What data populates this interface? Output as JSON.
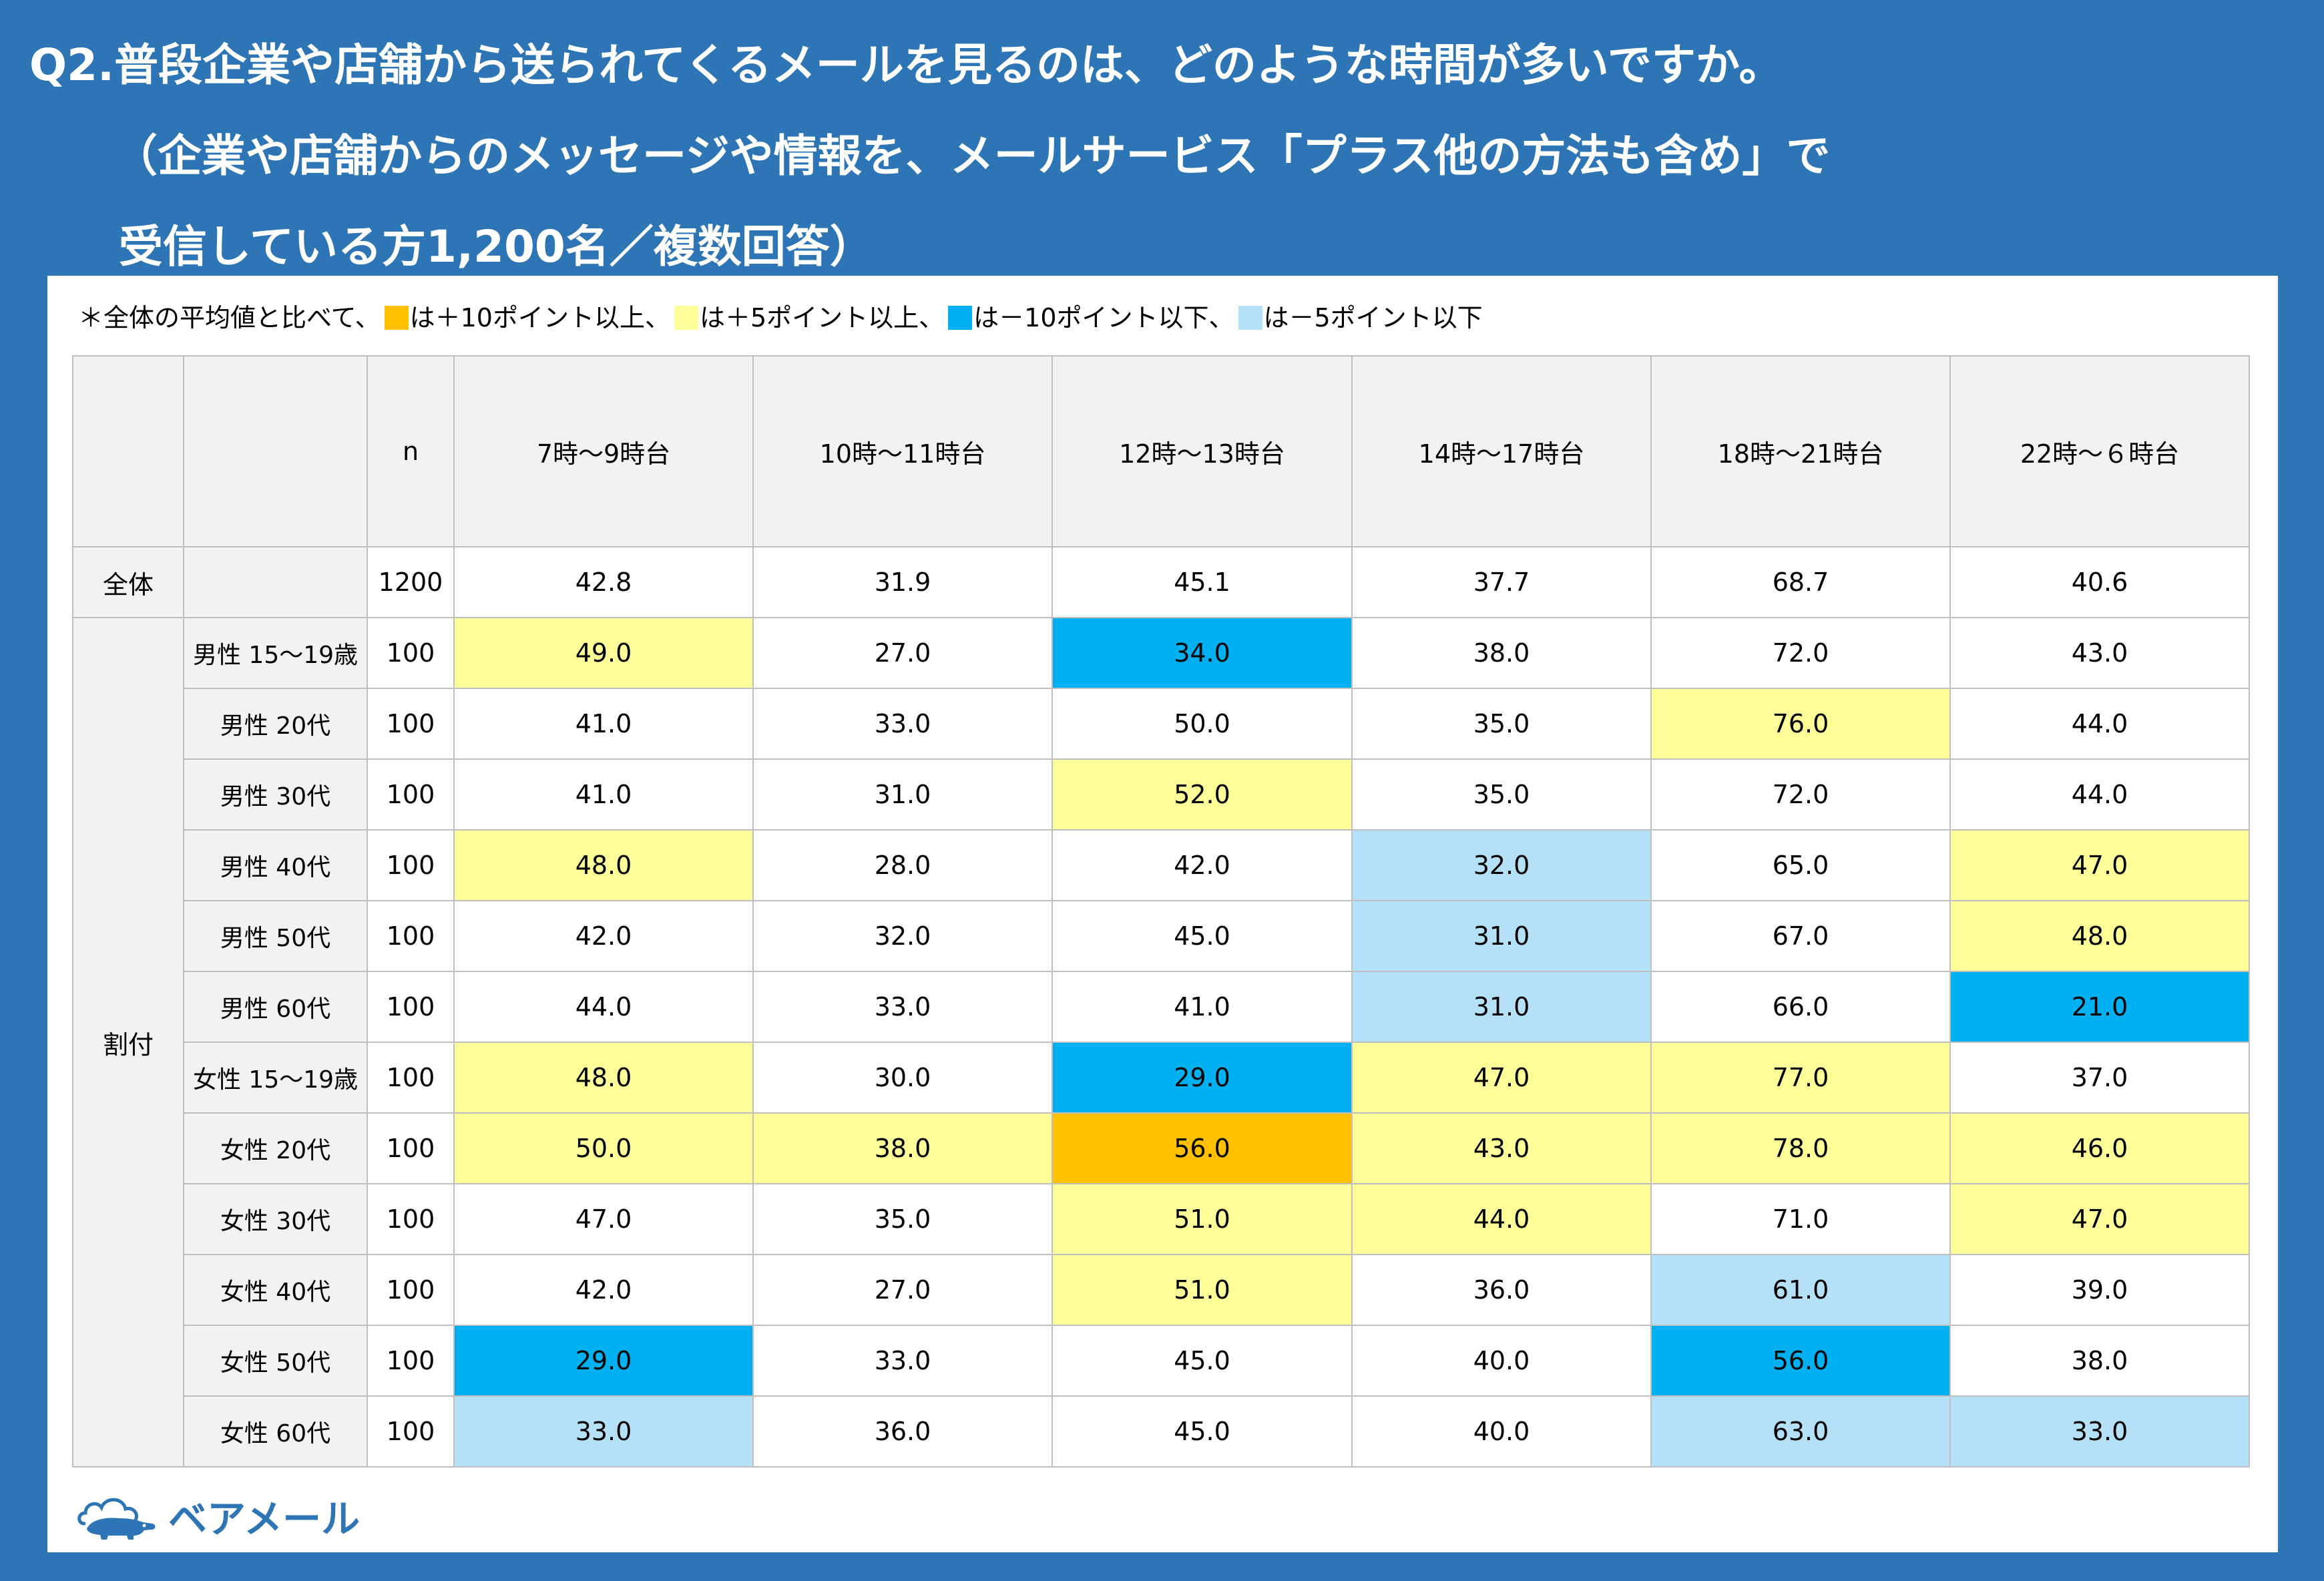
{
  "title": {
    "line1": "Q2.普段企業や店舗から送られてくるメールを見るのは、どのような時間が多いですか。",
    "line2": "（企業や店舗からのメッセージや情報を、メールサービス「プラス他の方法も含め」で",
    "line3": "受信している方1,200名／複数回答）"
  },
  "note": {
    "prefix": "＊全体の平均値と比べて、",
    "l1": "は＋10ポイント以上、",
    "l2": "は＋5ポイント以上、",
    "l3": "は－10ポイント以下、",
    "l4": "は－5ポイント以下"
  },
  "colors": {
    "plus10": "#ffc000",
    "plus5": "#ffff99",
    "minus10": "#00b0f0",
    "minus5": "#b4e0f8",
    "header_bg": "#f2f2f2",
    "frame": "#2e75b6"
  },
  "chart_data": {
    "type": "table",
    "columns": [
      "n",
      "7時～9時台",
      "10時～11時台",
      "12時～13時台",
      "14時～17時台",
      "18時～21時台",
      "22時～６時台"
    ],
    "total": {
      "label": "全体",
      "n": "1200",
      "values": [
        "42.8",
        "31.9",
        "45.1",
        "37.7",
        "68.7",
        "40.6"
      ]
    },
    "group_label": "割付",
    "rows": [
      {
        "label": "男性 15～19歳",
        "n": "100",
        "values": [
          "49.0",
          "27.0",
          "34.0",
          "38.0",
          "72.0",
          "43.0"
        ],
        "flags": [
          "plus5",
          "",
          "minus10",
          "",
          "",
          ""
        ]
      },
      {
        "label": "男性 20代",
        "n": "100",
        "values": [
          "41.0",
          "33.0",
          "50.0",
          "35.0",
          "76.0",
          "44.0"
        ],
        "flags": [
          "",
          "",
          "",
          "",
          "plus5",
          ""
        ]
      },
      {
        "label": "男性 30代",
        "n": "100",
        "values": [
          "41.0",
          "31.0",
          "52.0",
          "35.0",
          "72.0",
          "44.0"
        ],
        "flags": [
          "",
          "",
          "plus5",
          "",
          "",
          ""
        ]
      },
      {
        "label": "男性 40代",
        "n": "100",
        "values": [
          "48.0",
          "28.0",
          "42.0",
          "32.0",
          "65.0",
          "47.0"
        ],
        "flags": [
          "plus5",
          "",
          "",
          "minus5",
          "",
          "plus5"
        ]
      },
      {
        "label": "男性 50代",
        "n": "100",
        "values": [
          "42.0",
          "32.0",
          "45.0",
          "31.0",
          "67.0",
          "48.0"
        ],
        "flags": [
          "",
          "",
          "",
          "minus5",
          "",
          "plus5"
        ]
      },
      {
        "label": "男性 60代",
        "n": "100",
        "values": [
          "44.0",
          "33.0",
          "41.0",
          "31.0",
          "66.0",
          "21.0"
        ],
        "flags": [
          "",
          "",
          "",
          "minus5",
          "",
          "minus10"
        ]
      },
      {
        "label": "女性 15～19歳",
        "n": "100",
        "values": [
          "48.0",
          "30.0",
          "29.0",
          "47.0",
          "77.0",
          "37.0"
        ],
        "flags": [
          "plus5",
          "",
          "minus10",
          "plus5",
          "plus5",
          ""
        ]
      },
      {
        "label": "女性 20代",
        "n": "100",
        "values": [
          "50.0",
          "38.0",
          "56.0",
          "43.0",
          "78.0",
          "46.0"
        ],
        "flags": [
          "plus5",
          "plus5",
          "plus10",
          "plus5",
          "plus5",
          "plus5"
        ]
      },
      {
        "label": "女性 30代",
        "n": "100",
        "values": [
          "47.0",
          "35.0",
          "51.0",
          "44.0",
          "71.0",
          "47.0"
        ],
        "flags": [
          "",
          "",
          "plus5",
          "plus5",
          "",
          "plus5"
        ]
      },
      {
        "label": "女性 40代",
        "n": "100",
        "values": [
          "42.0",
          "27.0",
          "51.0",
          "36.0",
          "61.0",
          "39.0"
        ],
        "flags": [
          "",
          "",
          "plus5",
          "",
          "minus5",
          ""
        ]
      },
      {
        "label": "女性 50代",
        "n": "100",
        "values": [
          "29.0",
          "33.0",
          "45.0",
          "40.0",
          "56.0",
          "38.0"
        ],
        "flags": [
          "minus10",
          "",
          "",
          "",
          "minus10",
          ""
        ]
      },
      {
        "label": "女性 60代",
        "n": "100",
        "values": [
          "33.0",
          "36.0",
          "45.0",
          "40.0",
          "63.0",
          "33.0"
        ],
        "flags": [
          "minus5",
          "",
          "",
          "",
          "minus5",
          "minus5"
        ]
      }
    ]
  },
  "logo": {
    "text": "ベアメール",
    "icon": "bear-cloud-icon"
  }
}
